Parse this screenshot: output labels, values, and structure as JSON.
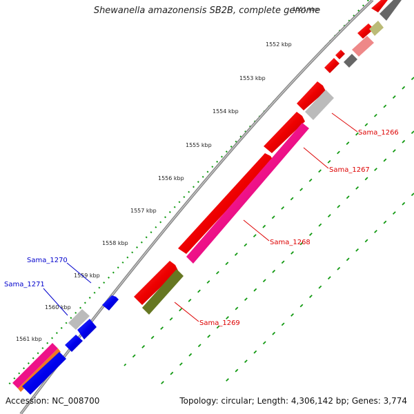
{
  "title": "Shewanella amazonensis SB2B, complete genome",
  "footer": {
    "accession": "Accession: NC_008700",
    "summary": "Topology: circular; Length: 4,306,142 bp; Genes: 3,774"
  },
  "ruler": {
    "kbp_labels": [
      "1551 kbp",
      "1552 kbp",
      "1553 kbp",
      "1554 kbp",
      "1555 kbp",
      "1556 kbp",
      "1557 kbp",
      "1558 kbp",
      "1559 kbp",
      "1560 kbp",
      "1561 kbp"
    ]
  },
  "genes": [
    {
      "label": "Sama_1266",
      "color": "#dd0000"
    },
    {
      "label": "Sama_1267",
      "color": "#dd0000"
    },
    {
      "label": "Sama_1268",
      "color": "#dd0000"
    },
    {
      "label": "Sama_1269",
      "color": "#dd0000"
    },
    {
      "label": "Sama_1270",
      "color": "#0000cc"
    },
    {
      "label": "Sama_1271",
      "color": "#0000cc"
    }
  ],
  "colors": {
    "backbone": "#888888",
    "ticks": "#119911",
    "red": "#ee0000",
    "blue": "#0000ee",
    "magenta": "#ee1188",
    "olive": "#667722",
    "grey": "#bbbbbb",
    "darkgrey": "#666666",
    "pink": "#ee8888",
    "khaki": "#bbbb77",
    "orange": "#ee7722"
  }
}
